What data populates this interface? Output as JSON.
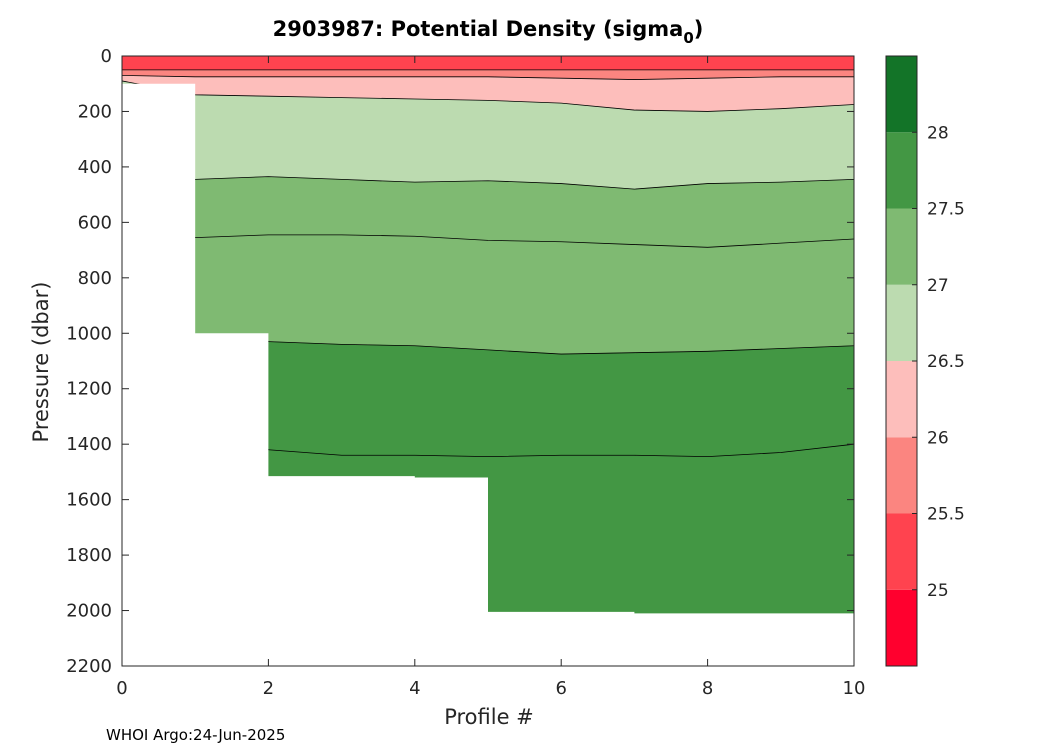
{
  "chart_data": {
    "type": "contour",
    "title": "2903987: Potential Density (sigma",
    "title_subscript": "0",
    "title_suffix": ")",
    "xlabel": "Profile #",
    "ylabel": "Pressure (dbar)",
    "xlim": [
      0,
      10
    ],
    "ylim": [
      2200,
      0
    ],
    "y_reversed": true,
    "x_ticks": [
      "0",
      "2",
      "4",
      "6",
      "8",
      "10"
    ],
    "y_ticks": [
      "0",
      "200",
      "400",
      "600",
      "800",
      "1000",
      "1200",
      "1400",
      "1600",
      "1800",
      "2000",
      "2200"
    ],
    "footer": "WHOI Argo:24-Jun-2025",
    "colorbar": {
      "range": [
        24.5,
        28.5
      ],
      "tick_labels": [
        "25",
        "25.5",
        "26",
        "26.5",
        "27",
        "27.5",
        "28"
      ],
      "bins": [
        {
          "lo": 24.5,
          "hi": 25.0,
          "color": "#ff002e"
        },
        {
          "lo": 25.0,
          "hi": 25.5,
          "color": "#ff434f"
        },
        {
          "lo": 25.5,
          "hi": 26.0,
          "color": "#fb8580"
        },
        {
          "lo": 26.0,
          "hi": 26.5,
          "color": "#fdbebb"
        },
        {
          "lo": 26.5,
          "hi": 27.0,
          "color": "#bcdbb0"
        },
        {
          "lo": 27.0,
          "hi": 27.5,
          "color": "#7fba72"
        },
        {
          "lo": 27.5,
          "hi": 28.0,
          "color": "#439744"
        },
        {
          "lo": 28.0,
          "hi": 28.5,
          "color": "#137428"
        }
      ]
    },
    "profiles": [
      {
        "x": 0,
        "max_pressure": 100
      },
      {
        "x": 1,
        "max_pressure": 1000
      },
      {
        "x": 2,
        "max_pressure": 1515
      },
      {
        "x": 3,
        "max_pressure": 1515
      },
      {
        "x": 4,
        "max_pressure": 1520
      },
      {
        "x": 5,
        "max_pressure": 2005
      },
      {
        "x": 6,
        "max_pressure": 2005
      },
      {
        "x": 7,
        "max_pressure": 2010
      },
      {
        "x": 8,
        "max_pressure": 2010
      },
      {
        "x": 9,
        "max_pressure": 2010
      },
      {
        "x": 10,
        "max_pressure": 2010
      }
    ],
    "isopycnals": [
      {
        "level": 25.5,
        "pressure": [
          50,
          50,
          50,
          50,
          50,
          50,
          50,
          50,
          50,
          50,
          50
        ]
      },
      {
        "level": 26.0,
        "pressure": [
          70,
          75,
          75,
          75,
          75,
          75,
          80,
          85,
          80,
          75,
          75
        ]
      },
      {
        "level": 26.5,
        "pressure": [
          90,
          140,
          145,
          150,
          155,
          160,
          170,
          195,
          200,
          190,
          175
        ]
      },
      {
        "level": 27.0,
        "pressure": [
          440,
          445,
          435,
          445,
          455,
          450,
          460,
          480,
          460,
          455,
          445
        ]
      },
      {
        "level": 27.5,
        "pressure": [
          650,
          655,
          645,
          645,
          650,
          665,
          670,
          680,
          690,
          675,
          660
        ]
      },
      {
        "level": 27.75,
        "pressure": [
          1030,
          1030,
          1030,
          1040,
          1045,
          1060,
          1075,
          1070,
          1065,
          1055,
          1045
        ]
      },
      {
        "level": 28.0,
        "pressure": [
          1415,
          1415,
          1420,
          1440,
          1440,
          1445,
          1440,
          1440,
          1445,
          1430,
          1400
        ]
      }
    ],
    "legend": "none",
    "grid": false
  }
}
